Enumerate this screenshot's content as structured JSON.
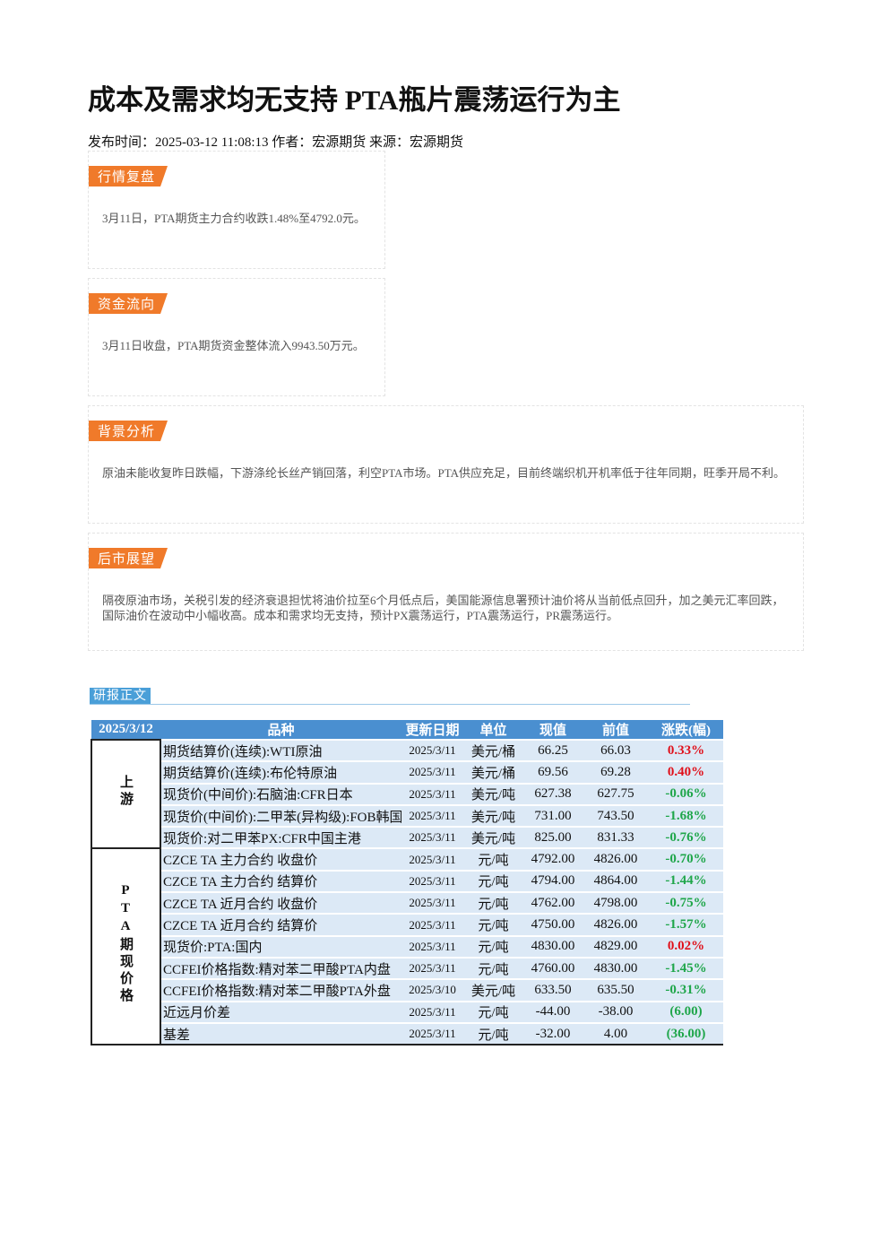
{
  "header": {
    "title": "成本及需求均无支持 PTA瓶片震荡运行为主",
    "meta": "发布时间：2025-03-12 11:08:13 作者：宏源期货 来源：宏源期货"
  },
  "sections": [
    {
      "tag": "行情复盘",
      "text": "3月11日，PTA期货主力合约收跌1.48%至4792.0元。"
    },
    {
      "tag": "资金流向",
      "text": "3月11日收盘，PTA期货资金整体流入9943.50万元。"
    },
    {
      "tag": "背景分析",
      "text": "原油未能收复昨日跌幅，下游涤纶长丝产销回落，利空PTA市场。PTA供应充足，目前终端织机开机率低于往年同期，旺季开局不利。"
    },
    {
      "tag": "后市展望",
      "text": "隔夜原油市场，关税引发的经济衰退担忧将油价拉至6个月低点后，美国能源信息署预计油价将从当前低点回升，加之美元汇率回跌，国际油价在波动中小幅收高。成本和需求均无支持，预计PX震荡运行，PTA震荡运行，PR震荡运行。"
    }
  ],
  "report": {
    "tag": "研报正文"
  },
  "table": {
    "header": [
      "2025/3/12",
      "品种",
      "更新日期",
      "单位",
      "现值",
      "前值",
      "涨跌(幅)"
    ],
    "groups": [
      {
        "label": "上游",
        "rows": [
          [
            "期货结算价(连续):WTI原油",
            "2025/3/11",
            "美元/桶",
            "66.25",
            "66.03",
            "0.33%"
          ],
          [
            "期货结算价(连续):布伦特原油",
            "2025/3/11",
            "美元/桶",
            "69.56",
            "69.28",
            "0.40%"
          ],
          [
            "现货价(中间价):石脑油:CFR日本",
            "2025/3/11",
            "美元/吨",
            "627.38",
            "627.75",
            "-0.06%"
          ],
          [
            "现货价(中间价):二甲苯(异构级):FOB韩国",
            "2025/3/11",
            "美元/吨",
            "731.00",
            "743.50",
            "-1.68%"
          ],
          [
            "现货价:对二甲苯PX:CFR中国主港",
            "2025/3/11",
            "美元/吨",
            "825.00",
            "831.33",
            "-0.76%"
          ]
        ]
      },
      {
        "label": "PTA期现价格",
        "rows": [
          [
            "CZCE TA 主力合约 收盘价",
            "2025/3/11",
            "元/吨",
            "4792.00",
            "4826.00",
            "-0.70%"
          ],
          [
            "CZCE TA 主力合约 结算价",
            "2025/3/11",
            "元/吨",
            "4794.00",
            "4864.00",
            "-1.44%"
          ],
          [
            "CZCE TA 近月合约 收盘价",
            "2025/3/11",
            "元/吨",
            "4762.00",
            "4798.00",
            "-0.75%"
          ],
          [
            "CZCE TA 近月合约 结算价",
            "2025/3/11",
            "元/吨",
            "4750.00",
            "4826.00",
            "-1.57%"
          ],
          [
            "现货价:PTA:国内",
            "2025/3/11",
            "元/吨",
            "4830.00",
            "4829.00",
            "0.02%"
          ],
          [
            "CCFEI价格指数:精对苯二甲酸PTA内盘",
            "2025/3/11",
            "元/吨",
            "4760.00",
            "4830.00",
            "-1.45%"
          ],
          [
            "CCFEI价格指数:精对苯二甲酸PTA外盘",
            "2025/3/10",
            "美元/吨",
            "633.50",
            "635.50",
            "-0.31%"
          ],
          [
            "近远月价差",
            "2025/3/11",
            "元/吨",
            "-44.00",
            "-38.00",
            "(6.00)"
          ],
          [
            "基差",
            "2025/3/11",
            "元/吨",
            "-32.00",
            "4.00",
            "(36.00)"
          ]
        ]
      }
    ]
  }
}
